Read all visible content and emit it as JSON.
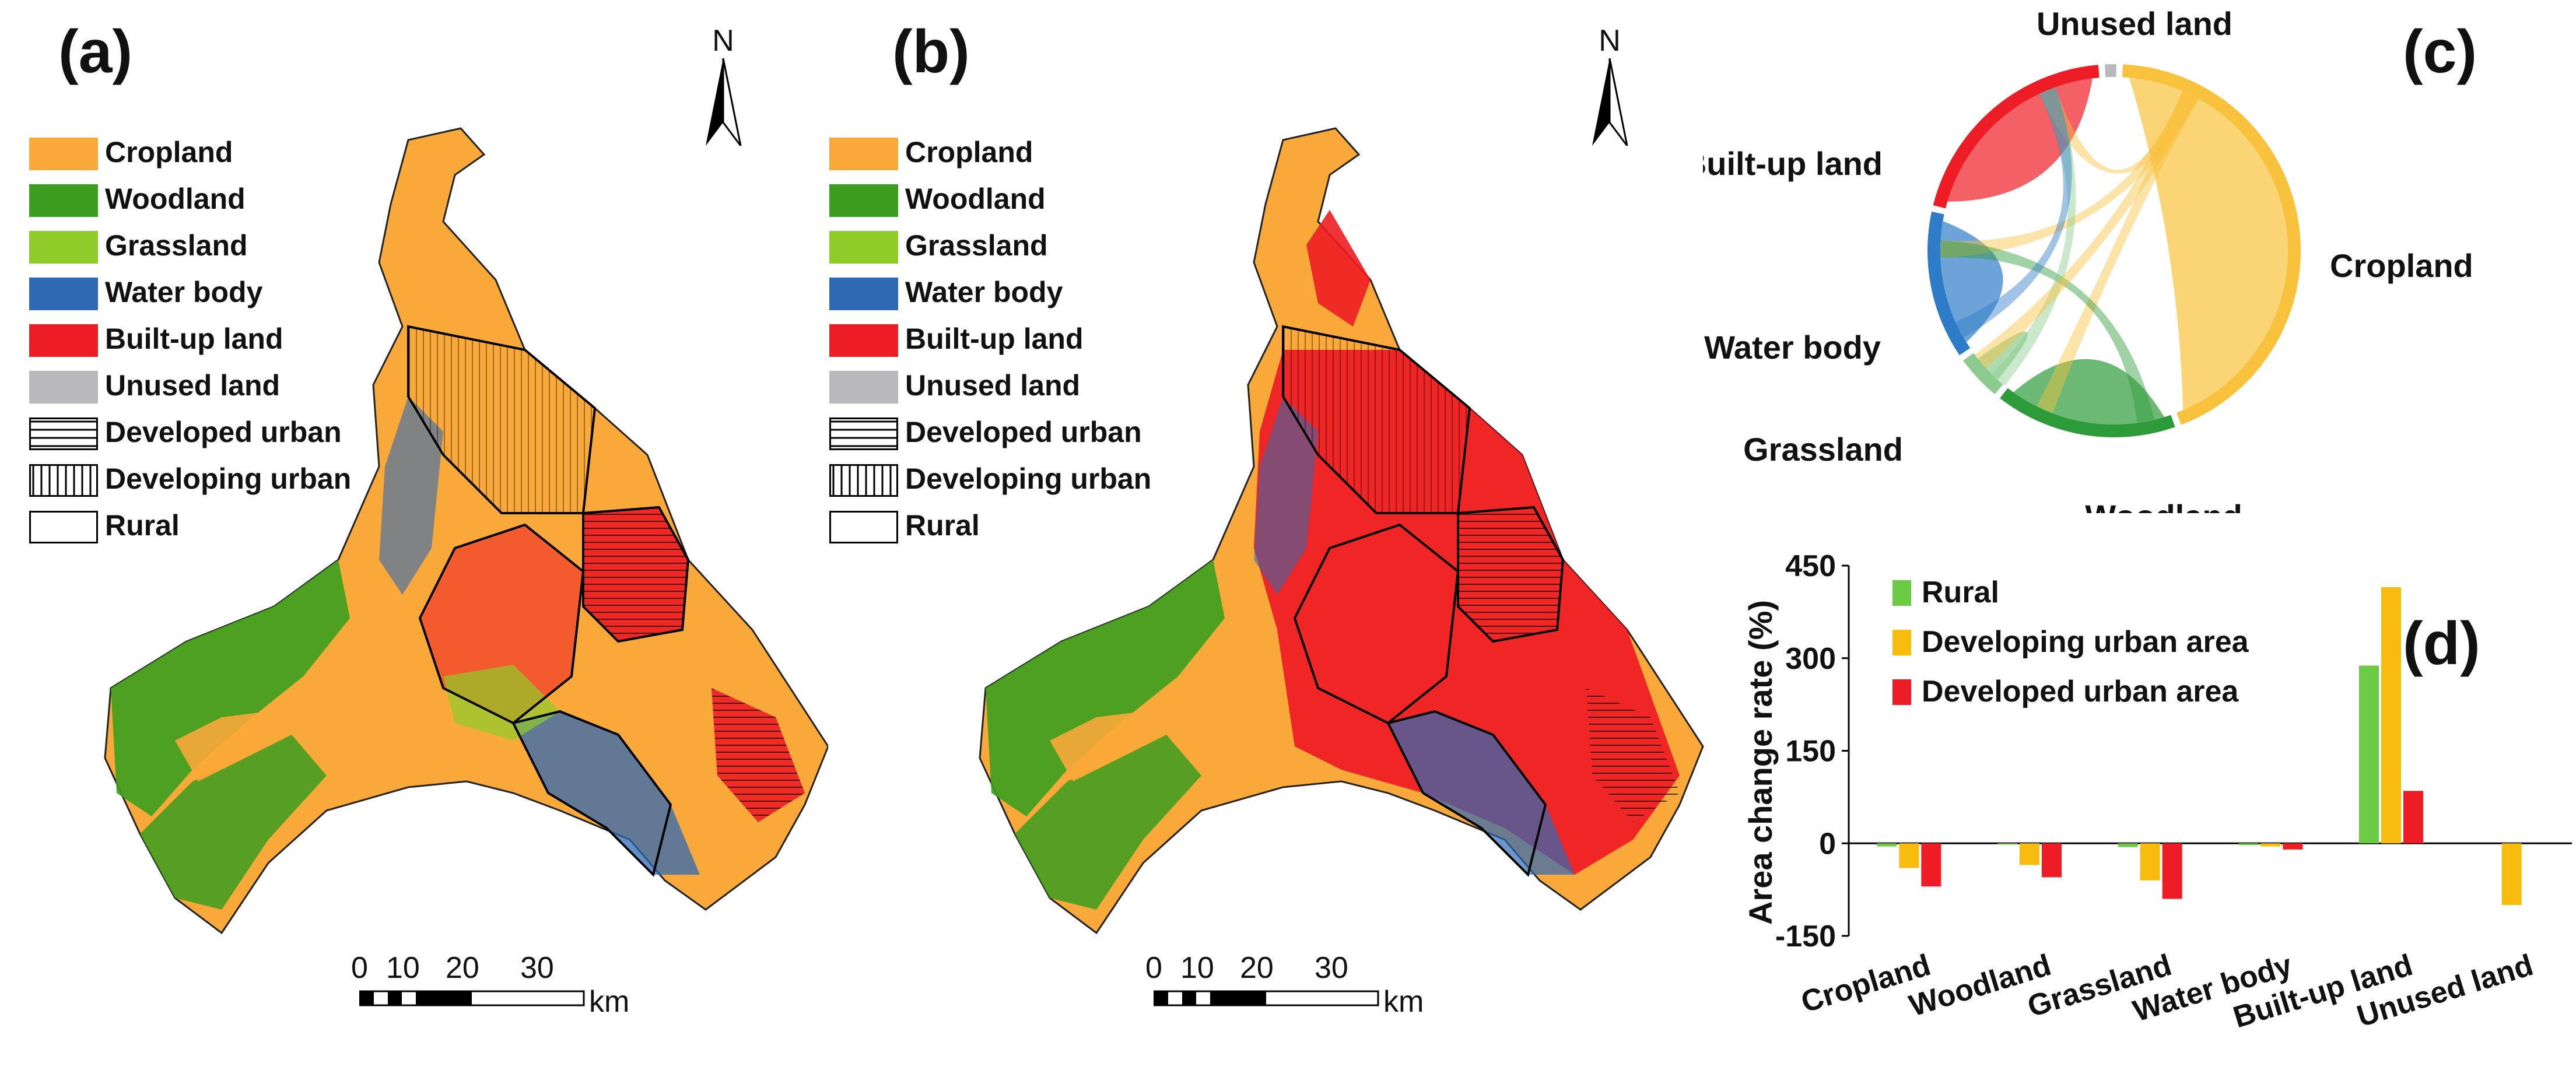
{
  "panels": {
    "a": {
      "letter": "(a)"
    },
    "b": {
      "letter": "(b)"
    },
    "c": {
      "letter": "(c)"
    },
    "d": {
      "letter": "(d)"
    }
  },
  "map_legend": {
    "items": [
      {
        "label": "Cropland",
        "color": "#F9A93A"
      },
      {
        "label": "Woodland",
        "color": "#3B9E1E"
      },
      {
        "label": "Grassland",
        "color": "#8FCC2A"
      },
      {
        "label": "Water body",
        "color": "#2F69B5"
      },
      {
        "label": "Built-up land",
        "color": "#EE1C24"
      },
      {
        "label": "Unused land",
        "color": "#B9B9BB"
      }
    ],
    "zones": [
      {
        "label": "Developed urban",
        "pattern": "horizontal-lines"
      },
      {
        "label": "Developing urban",
        "pattern": "vertical-lines"
      },
      {
        "label": "Rural",
        "pattern": "empty"
      }
    ]
  },
  "north_arrow": {
    "letter": "N"
  },
  "scale_bar": {
    "ticks": [
      "0",
      "10",
      "20",
      "30"
    ],
    "unit": "km"
  },
  "chart_data": [
    {
      "type": "chord",
      "nodes": [
        {
          "name": "Unused land",
          "color": "#B9B9BB",
          "share": 0.01
        },
        {
          "name": "Cropland",
          "color": "#F9C23C",
          "share": 0.44
        },
        {
          "name": "Woodland",
          "color": "#2E9B3A",
          "share": 0.16
        },
        {
          "name": "Grassland",
          "color": "#8CCB8F",
          "share": 0.04
        },
        {
          "name": "Water body",
          "color": "#2E7CC7",
          "share": 0.13
        },
        {
          "name": "Built-up land",
          "color": "#EE1C24",
          "share": 0.2
        }
      ]
    },
    {
      "type": "bar",
      "ylabel": "Area change rate (%)",
      "ylim": [
        -150,
        450
      ],
      "yticks": [
        "450",
        "300",
        "150",
        "0",
        "-150"
      ],
      "categories": [
        "Cropland",
        "Woodland",
        "Grassland",
        "Water body",
        "Built-up land",
        "Unused land"
      ],
      "series": [
        {
          "name": "Rural",
          "color": "#6CCB45",
          "values": [
            -5,
            -2,
            -6,
            -3,
            288,
            0
          ]
        },
        {
          "name": "Developing urban area",
          "color": "#F8BC0E",
          "values": [
            -40,
            -35,
            -60,
            -5,
            415,
            -100
          ]
        },
        {
          "name": "Developed urban area",
          "color": "#EE1C24",
          "values": [
            -70,
            -55,
            -90,
            -10,
            85,
            0
          ]
        }
      ],
      "legend_position": "top-left",
      "grid": false
    }
  ]
}
